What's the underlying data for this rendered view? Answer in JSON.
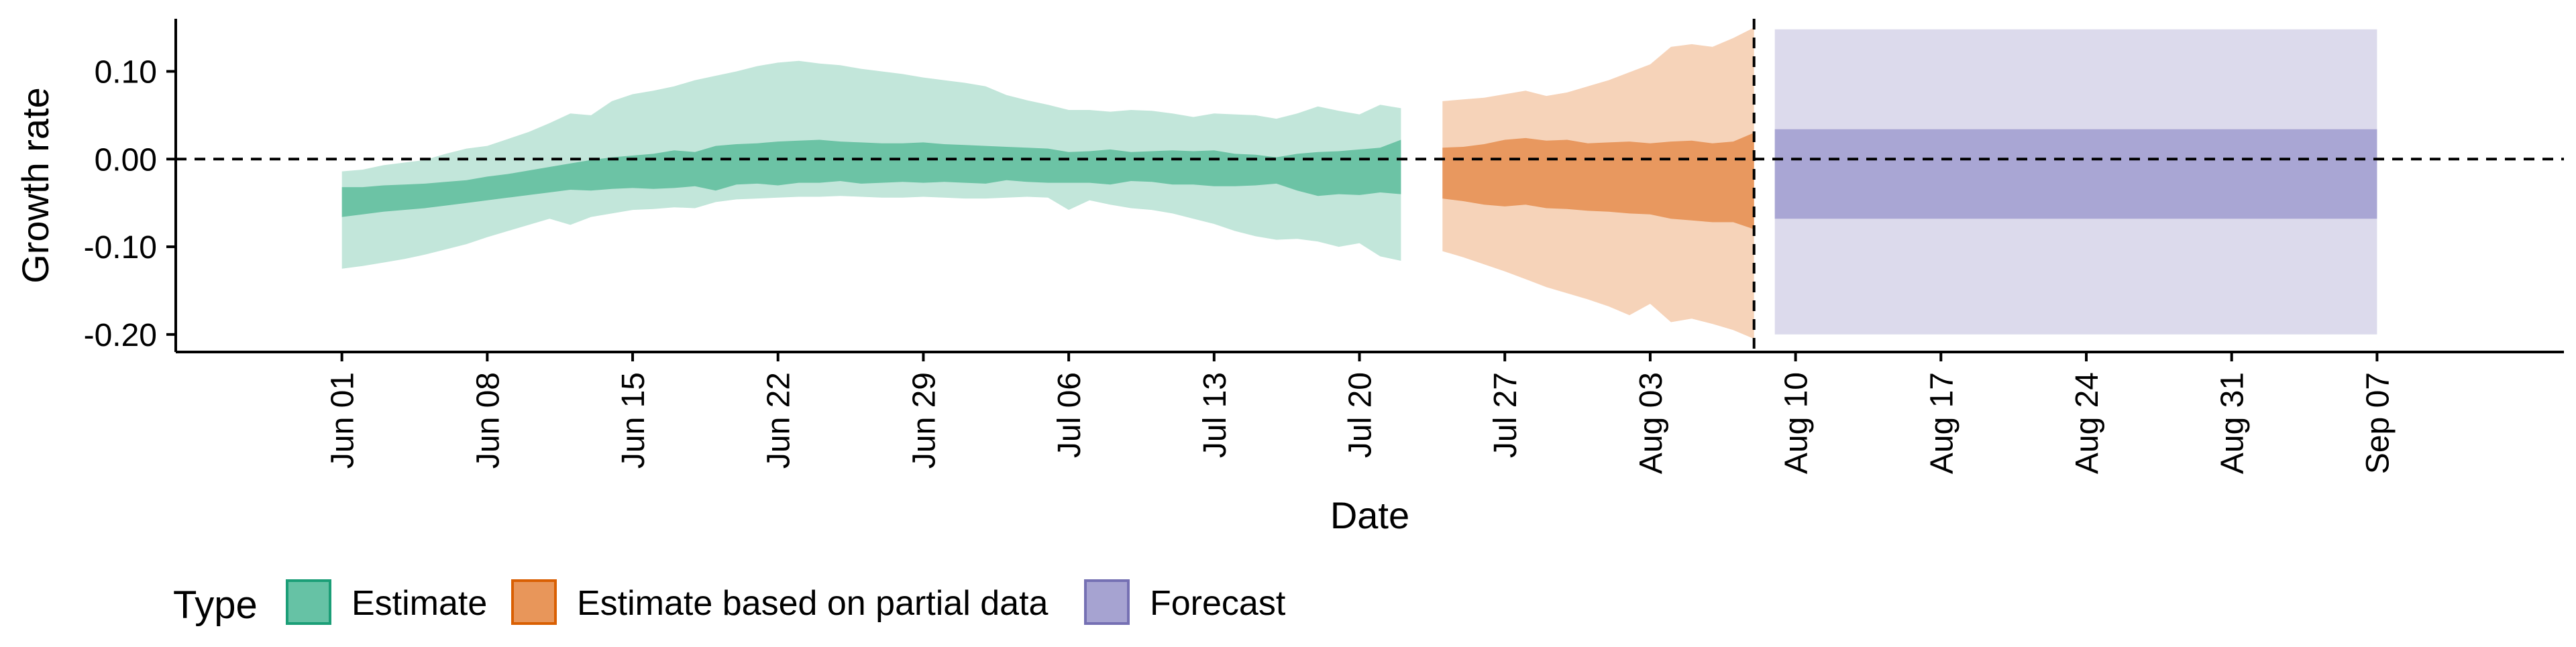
{
  "chart_data": {
    "type": "area",
    "xlabel": "Date",
    "ylabel": "Growth rate",
    "x_axis_type": "date",
    "xlim": [
      "2021-05-24",
      "2021-09-16"
    ],
    "ylim": [
      -0.22,
      0.16
    ],
    "x_ticks": [
      {
        "date": "2021-06-01",
        "label": "Jun 01"
      },
      {
        "date": "2021-06-08",
        "label": "Jun 08"
      },
      {
        "date": "2021-06-15",
        "label": "Jun 15"
      },
      {
        "date": "2021-06-22",
        "label": "Jun 22"
      },
      {
        "date": "2021-06-29",
        "label": "Jun 29"
      },
      {
        "date": "2021-07-06",
        "label": "Jul 06"
      },
      {
        "date": "2021-07-13",
        "label": "Jul 13"
      },
      {
        "date": "2021-07-20",
        "label": "Jul 20"
      },
      {
        "date": "2021-07-27",
        "label": "Jul 27"
      },
      {
        "date": "2021-08-03",
        "label": "Aug 03"
      },
      {
        "date": "2021-08-10",
        "label": "Aug 10"
      },
      {
        "date": "2021-08-17",
        "label": "Aug 17"
      },
      {
        "date": "2021-08-24",
        "label": "Aug 24"
      },
      {
        "date": "2021-08-31",
        "label": "Aug 31"
      },
      {
        "date": "2021-09-07",
        "label": "Sep 07"
      }
    ],
    "y_ticks": [
      {
        "value": 0.1,
        "label": "0.10"
      },
      {
        "value": 0.0,
        "label": "0.00"
      },
      {
        "value": -0.1,
        "label": "-0.10"
      },
      {
        "value": -0.2,
        "label": "-0.20"
      }
    ],
    "reference_lines": {
      "horizontal_y": 0,
      "vertical_date": "2021-08-08"
    },
    "grid": false,
    "legend": {
      "title": "Type",
      "placement": "bottom-left",
      "entries": [
        {
          "label": "Estimate",
          "color": "#66c2a5",
          "border": "#1b9e77"
        },
        {
          "label": "Estimate based on partial data",
          "color": "#e8965a",
          "border": "#d95f02"
        },
        {
          "label": "Forecast",
          "color": "#a6a3d1",
          "border": "#7570b3"
        }
      ]
    },
    "series": [
      {
        "name": "Estimate",
        "color_outer": "#c2e6da",
        "color_inner": "#6cc3a5",
        "x": [
          "2021-06-01",
          "2021-06-02",
          "2021-06-03",
          "2021-06-04",
          "2021-06-05",
          "2021-06-06",
          "2021-06-07",
          "2021-06-08",
          "2021-06-09",
          "2021-06-10",
          "2021-06-11",
          "2021-06-12",
          "2021-06-13",
          "2021-06-14",
          "2021-06-15",
          "2021-06-16",
          "2021-06-17",
          "2021-06-18",
          "2021-06-19",
          "2021-06-20",
          "2021-06-21",
          "2021-06-22",
          "2021-06-23",
          "2021-06-24",
          "2021-06-25",
          "2021-06-26",
          "2021-06-27",
          "2021-06-28",
          "2021-06-29",
          "2021-06-30",
          "2021-07-01",
          "2021-07-02",
          "2021-07-03",
          "2021-07-04",
          "2021-07-05",
          "2021-07-06",
          "2021-07-07",
          "2021-07-08",
          "2021-07-09",
          "2021-07-10",
          "2021-07-11",
          "2021-07-12",
          "2021-07-13",
          "2021-07-14",
          "2021-07-15",
          "2021-07-16",
          "2021-07-17",
          "2021-07-18",
          "2021-07-19",
          "2021-07-20",
          "2021-07-21",
          "2021-07-22"
        ],
        "lower_90": [
          -0.125,
          -0.122,
          -0.118,
          -0.114,
          -0.109,
          -0.103,
          -0.097,
          -0.089,
          -0.082,
          -0.075,
          -0.068,
          -0.075,
          -0.066,
          -0.062,
          -0.058,
          -0.057,
          -0.055,
          -0.056,
          -0.049,
          -0.046,
          -0.045,
          -0.044,
          -0.043,
          -0.043,
          -0.042,
          -0.043,
          -0.044,
          -0.044,
          -0.043,
          -0.044,
          -0.045,
          -0.045,
          -0.044,
          -0.043,
          -0.044,
          -0.058,
          -0.047,
          -0.052,
          -0.056,
          -0.058,
          -0.062,
          -0.068,
          -0.074,
          -0.082,
          -0.088,
          -0.092,
          -0.091,
          -0.094,
          -0.1,
          -0.096,
          -0.111,
          -0.116
        ],
        "lower_50": [
          -0.066,
          -0.063,
          -0.06,
          -0.058,
          -0.056,
          -0.053,
          -0.05,
          -0.047,
          -0.044,
          -0.041,
          -0.038,
          -0.035,
          -0.036,
          -0.034,
          -0.033,
          -0.034,
          -0.033,
          -0.031,
          -0.036,
          -0.029,
          -0.028,
          -0.03,
          -0.027,
          -0.027,
          -0.025,
          -0.028,
          -0.027,
          -0.026,
          -0.027,
          -0.026,
          -0.027,
          -0.028,
          -0.024,
          -0.026,
          -0.027,
          -0.027,
          -0.027,
          -0.029,
          -0.025,
          -0.026,
          -0.029,
          -0.029,
          -0.031,
          -0.031,
          -0.03,
          -0.028,
          -0.036,
          -0.042,
          -0.04,
          -0.041,
          -0.038,
          -0.04
        ],
        "upper_50": [
          -0.032,
          -0.032,
          -0.03,
          -0.029,
          -0.028,
          -0.026,
          -0.024,
          -0.02,
          -0.017,
          -0.013,
          -0.009,
          -0.005,
          -0.001,
          0.002,
          0.004,
          0.006,
          0.01,
          0.008,
          0.015,
          0.017,
          0.018,
          0.02,
          0.021,
          0.022,
          0.02,
          0.019,
          0.018,
          0.018,
          0.019,
          0.017,
          0.016,
          0.015,
          0.014,
          0.013,
          0.012,
          0.008,
          0.009,
          0.011,
          0.008,
          0.009,
          0.01,
          0.009,
          0.01,
          0.006,
          0.005,
          0.002,
          0.006,
          0.008,
          0.009,
          0.011,
          0.013,
          0.022
        ],
        "upper_90": [
          -0.014,
          -0.012,
          -0.007,
          -0.004,
          -0.001,
          0.006,
          0.012,
          0.015,
          0.023,
          0.031,
          0.041,
          0.052,
          0.05,
          0.066,
          0.074,
          0.078,
          0.083,
          0.09,
          0.095,
          0.1,
          0.106,
          0.11,
          0.112,
          0.109,
          0.107,
          0.103,
          0.1,
          0.097,
          0.093,
          0.09,
          0.087,
          0.083,
          0.073,
          0.067,
          0.062,
          0.056,
          0.056,
          0.054,
          0.056,
          0.055,
          0.052,
          0.048,
          0.052,
          0.051,
          0.05,
          0.046,
          0.052,
          0.06,
          0.055,
          0.051,
          0.062,
          0.058
        ]
      },
      {
        "name": "Estimate based on partial data",
        "color_outer": "#f6d3b9",
        "color_inner": "#e8985f",
        "x": [
          "2021-07-24",
          "2021-07-25",
          "2021-07-26",
          "2021-07-27",
          "2021-07-28",
          "2021-07-29",
          "2021-07-30",
          "2021-07-31",
          "2021-08-01",
          "2021-08-02",
          "2021-08-03",
          "2021-08-04",
          "2021-08-05",
          "2021-08-06",
          "2021-08-07",
          "2021-08-08"
        ],
        "lower_90": [
          -0.105,
          -0.112,
          -0.12,
          -0.128,
          -0.137,
          -0.146,
          -0.153,
          -0.16,
          -0.168,
          -0.178,
          -0.165,
          -0.186,
          -0.182,
          -0.188,
          -0.195,
          -0.205
        ],
        "lower_50": [
          -0.045,
          -0.048,
          -0.052,
          -0.054,
          -0.052,
          -0.056,
          -0.057,
          -0.059,
          -0.06,
          -0.062,
          -0.063,
          -0.068,
          -0.07,
          -0.072,
          -0.072,
          -0.08
        ],
        "upper_50": [
          0.013,
          0.014,
          0.017,
          0.022,
          0.024,
          0.021,
          0.022,
          0.018,
          0.019,
          0.02,
          0.018,
          0.02,
          0.021,
          0.018,
          0.02,
          0.03
        ],
        "upper_90": [
          0.066,
          0.068,
          0.07,
          0.074,
          0.078,
          0.072,
          0.076,
          0.083,
          0.09,
          0.099,
          0.108,
          0.128,
          0.131,
          0.128,
          0.138,
          0.15
        ]
      },
      {
        "name": "Forecast",
        "color_outer": "#dcdaec",
        "color_inner": "#a9a6d4",
        "x": [
          "2021-08-09",
          "2021-09-07"
        ],
        "lower_90": [
          -0.2,
          -0.2
        ],
        "lower_50": [
          -0.068,
          -0.068
        ],
        "upper_50": [
          0.034,
          0.034
        ],
        "upper_90": [
          0.148,
          0.148
        ]
      }
    ]
  }
}
